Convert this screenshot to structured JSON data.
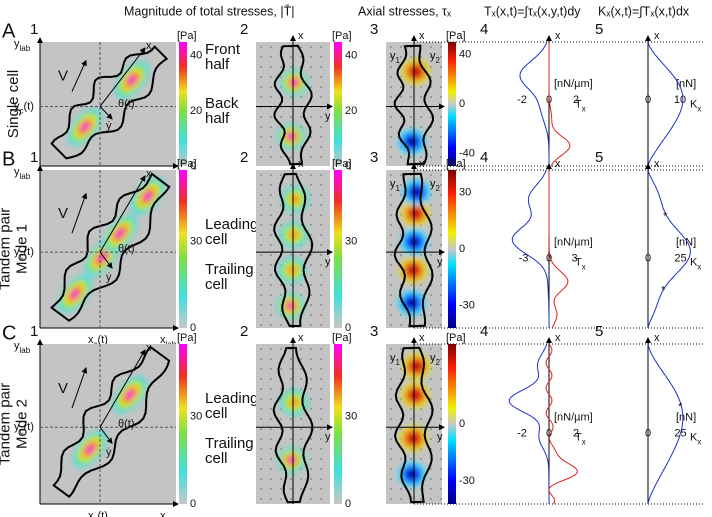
{
  "header": {
    "col1": "Magnitude of total stresses, |T̄|",
    "col2": "Axial stresses, τₓ",
    "col3": "Tₓ(x,t)=∫τₓ(x,y,t)dy",
    "col4": "Kₓ(x,t)=∫Tₓ(x,t)dx"
  },
  "rows": [
    {
      "letter": "A",
      "label": [
        "Single cell"
      ],
      "p1": {
        "num": "1",
        "ylab": [
          "y",
          "lab"
        ],
        "yc": [
          "y",
          "c",
          "(t)"
        ],
        "xc": [
          "x",
          "c",
          "(t)"
        ],
        "xlab": [
          "x",
          "lab"
        ],
        "V": "V",
        "theta": "θ(t)",
        "ydot": "ẏ",
        "x": "x",
        "unit": "[Pa]",
        "ticks": [
          "0",
          "20",
          "40"
        ],
        "notes": [
          "Front",
          "half",
          "Back",
          "half"
        ]
      },
      "p2": {
        "num": "2",
        "x": "x",
        "y": "y",
        "unit": "[Pa]",
        "ticks": [
          "0",
          "20",
          "40"
        ]
      },
      "p3": {
        "num": "3",
        "x": "x",
        "y1": [
          "y",
          "1"
        ],
        "y2": [
          "y",
          "2"
        ],
        "unit": "[Pa]",
        "ticks": [
          "-40",
          "0",
          "40"
        ]
      },
      "p4": {
        "num": "4",
        "x": "x",
        "unit": "[nN/µm]",
        "label": [
          "T",
          "x"
        ],
        "ticks": [
          "-2",
          "0",
          "2"
        ]
      },
      "p5": {
        "num": "5",
        "x": "x",
        "unit": "[nN]",
        "label": [
          "K",
          "x"
        ],
        "ticks": [
          "0",
          "10"
        ]
      }
    },
    {
      "letter": "B",
      "label": [
        "Tandem pair",
        "Mode 1"
      ],
      "p1": {
        "num": "1",
        "ylab": [
          "y",
          "lab"
        ],
        "yc": [
          "y",
          "c",
          "(t)"
        ],
        "xc": [
          "x",
          "c",
          "(t)"
        ],
        "xlab": [
          "x",
          "lab"
        ],
        "V": "V",
        "theta": "θ(t)",
        "ydot": "ẏ",
        "x": "x",
        "unit": "[Pa]",
        "ticks": [
          "0",
          "30"
        ],
        "notes": [
          "Leading",
          "cell",
          "Trailing",
          "cell"
        ]
      },
      "p2": {
        "num": "2",
        "x": "x",
        "y": "y",
        "unit": "[Pa]",
        "ticks": [
          "0",
          "30"
        ]
      },
      "p3": {
        "num": "3",
        "x": "x",
        "y": "y",
        "y1": [
          "y",
          "1"
        ],
        "y2": [
          "y",
          "2"
        ],
        "unit": "[Pa]",
        "ticks": [
          "-30",
          "0",
          "30"
        ]
      },
      "p4": {
        "num": "4",
        "x": "x",
        "unit": "[nN/µm]",
        "label": [
          "T",
          "x"
        ],
        "ticks": [
          "-3",
          "0",
          "3"
        ]
      },
      "p5": {
        "num": "5",
        "x": "x",
        "unit": "[nN]",
        "label": [
          "K",
          "x"
        ],
        "ticks": [
          "0",
          "25"
        ]
      }
    },
    {
      "letter": "C",
      "label": [
        "Tandem pair",
        "Mode 2"
      ],
      "p1": {
        "num": "1",
        "ylab": [
          "y",
          "lab"
        ],
        "yc": [
          "y",
          "c",
          "(t)"
        ],
        "xc": [
          "x",
          "c",
          "(t)"
        ],
        "xlab": [
          "x",
          "lab"
        ],
        "V": "V",
        "theta": "θ(t)",
        "ydot": "ẏ",
        "x": "x",
        "unit": "[Pa]",
        "ticks": [
          "0",
          "30"
        ],
        "notes": [
          "Leading",
          "cell",
          "Trailing",
          "cell"
        ]
      },
      "p2": {
        "num": "2",
        "x": "x",
        "y": "y",
        "unit": "[Pa]",
        "ticks": [
          "0",
          "30"
        ]
      },
      "p3": {
        "num": "3",
        "x": "x",
        "y": "y",
        "y1": [
          "y",
          "1"
        ],
        "y2": [
          "y",
          "2"
        ],
        "unit": "[Pa]",
        "ticks": [
          "-30",
          "0"
        ]
      },
      "p4": {
        "num": "4",
        "x": "x",
        "unit": "[nN/µm]",
        "label": [
          "T",
          "x"
        ],
        "ticks": [
          "-2",
          "0",
          "2"
        ]
      },
      "p5": {
        "num": "5",
        "x": "x",
        "unit": "[nN]",
        "label": [
          "K",
          "x"
        ],
        "ticks": [
          "0",
          "25"
        ]
      }
    }
  ]
}
